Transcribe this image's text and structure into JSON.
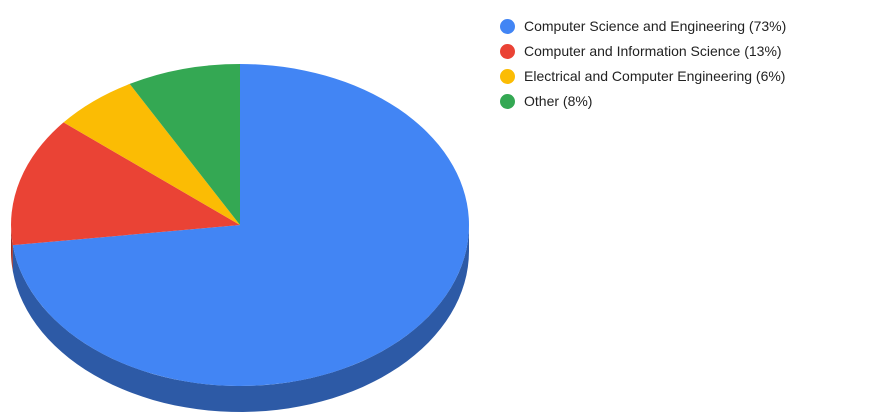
{
  "chart_data": {
    "type": "pie",
    "style": "3d",
    "categories": [
      "Computer Science and Engineering",
      "Computer and Information Science",
      "Electrical and Computer Engineering",
      "Other"
    ],
    "values": [
      73,
      13,
      6,
      8
    ],
    "colors": [
      "#4285f4",
      "#ea4335",
      "#fbbc04",
      "#34a853"
    ],
    "legend": {
      "position": "right",
      "items": [
        "Computer Science and Engineering (73%)",
        "Computer and Information Science (13%)",
        "Electrical and Computer Engineering (6%)",
        "Other (8%)"
      ]
    }
  }
}
